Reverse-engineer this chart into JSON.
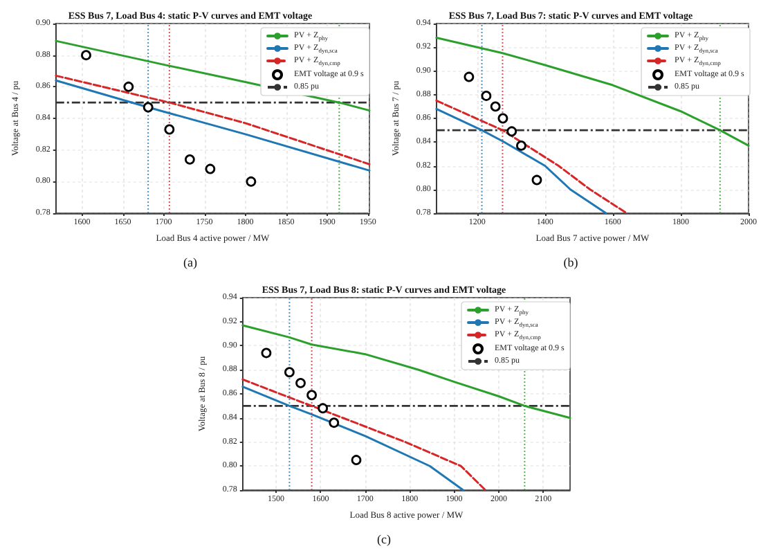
{
  "chart_data": [
    {
      "type": "line",
      "title": "ESS Bus 7, Load Bus 4: static P-V curves and EMT voltage",
      "xlabel": "Load Bus 4 active power / MW",
      "ylabel": "Voltage at Bus 4 / pu",
      "xlim": [
        1568,
        1952
      ],
      "xticks": [
        1600,
        1650,
        1700,
        1750,
        1800,
        1850,
        1900,
        1950
      ],
      "ylim": [
        0.78,
        0.9
      ],
      "yticks": [
        {
          "value": 0.78,
          "label": "0.78"
        },
        {
          "value": 0.8,
          "label": "0.80"
        },
        {
          "value": 0.82,
          "label": "0.82"
        },
        {
          "value": 0.84,
          "label": "0.84"
        },
        {
          "value": 0.86,
          "label": "0.86"
        },
        {
          "value": 0.88,
          "label": "0.88"
        },
        {
          "value": 0.9,
          "label": "0.90"
        }
      ],
      "grid": true,
      "legend": "top right",
      "annotations": [
        "(a)"
      ],
      "ref_lines": [
        {
          "axis": "y",
          "value": 0.85,
          "label": "0.85 pu",
          "color": "#333333",
          "line_style": "dashed"
        },
        {
          "axis": "x",
          "value": 1681,
          "label": null,
          "color": "#1f77b4",
          "line_style": "dotted"
        },
        {
          "axis": "x",
          "value": 1707,
          "label": null,
          "color": "#d62728",
          "line_style": "dotted"
        },
        {
          "axis": "x",
          "value": 1915,
          "label": null,
          "color": "#2ca02c",
          "line_style": "dotted"
        }
      ],
      "series": [
        {
          "name": "PV + Z$_{phy}$",
          "color": "#2ca02c",
          "line_style": "solid",
          "x": [
            1568,
            1700,
            1800,
            1915,
            1952
          ],
          "values": [
            0.889,
            0.874,
            0.863,
            0.85,
            0.845
          ]
        },
        {
          "name": "PV + Z$_{dyn,sca}$",
          "color": "#1f77b4",
          "line_style": "solid",
          "x": [
            1568,
            1681,
            1800,
            1952
          ],
          "values": [
            0.864,
            0.847,
            0.83,
            0.807
          ]
        },
        {
          "name": "PV + Z$_{dyn,cmp}$",
          "color": "#d62728",
          "line_style": "dashed",
          "x": [
            1568,
            1707,
            1800,
            1952
          ],
          "values": [
            0.867,
            0.85,
            0.837,
            0.811
          ]
        },
        {
          "name": "EMT voltage at 0.9 s",
          "type": "scatter",
          "marker": "circle",
          "color": "#000000",
          "x": [
            1605,
            1657,
            1681,
            1707,
            1732,
            1757,
            1807
          ],
          "values": [
            0.88,
            0.86,
            0.847,
            0.833,
            0.814,
            0.808,
            0.8
          ]
        }
      ]
    },
    {
      "type": "line",
      "title": "ESS Bus 7, Load Bus 7: static P-V curves and EMT voltage",
      "xlabel": "Load Bus 7 active power / MW",
      "ylabel": "Voltage at Bus 7 / pu",
      "xlim": [
        1080,
        2000
      ],
      "xticks": [
        1200,
        1400,
        1600,
        1800,
        2000
      ],
      "ylim": [
        0.78,
        0.94
      ],
      "yticks": [
        {
          "value": 0.78,
          "label": "0.78"
        },
        {
          "value": 0.8,
          "label": "0.80"
        },
        {
          "value": 0.82,
          "label": "0.82"
        },
        {
          "value": 0.84,
          "label": "0.84"
        },
        {
          "value": 0.86,
          "label": "0.86"
        },
        {
          "value": 0.88,
          "label": "0.88"
        },
        {
          "value": 0.9,
          "label": "0.90"
        },
        {
          "value": 0.92,
          "label": "0.92"
        },
        {
          "value": 0.94,
          "label": "0.94"
        }
      ],
      "grid": true,
      "legend": "top right",
      "annotations": [
        "(b)"
      ],
      "ref_lines": [
        {
          "axis": "y",
          "value": 0.85,
          "label": "0.85 pu",
          "color": "#333333",
          "line_style": "dashed"
        },
        {
          "axis": "x",
          "value": 1214,
          "label": null,
          "color": "#1f77b4",
          "line_style": "dotted"
        },
        {
          "axis": "x",
          "value": 1275,
          "label": null,
          "color": "#d62728",
          "line_style": "dotted"
        },
        {
          "axis": "x",
          "value": 1916,
          "label": null,
          "color": "#2ca02c",
          "line_style": "dotted"
        }
      ],
      "series": [
        {
          "name": "PV + Z$_{phy}$",
          "color": "#2ca02c",
          "line_style": "solid",
          "x": [
            1080,
            1275,
            1400,
            1600,
            1800,
            1916,
            2000
          ],
          "values": [
            0.928,
            0.915,
            0.905,
            0.888,
            0.866,
            0.85,
            0.837
          ]
        },
        {
          "name": "PV + Z$_{dyn,sca}$",
          "color": "#1f77b4",
          "line_style": "solid",
          "x": [
            1080,
            1214,
            1280,
            1400,
            1475,
            1580
          ],
          "values": [
            0.868,
            0.85,
            0.84,
            0.82,
            0.8,
            0.78
          ]
        },
        {
          "name": "PV + Z$_{dyn,cmp}$",
          "color": "#d62728",
          "line_style": "dashed",
          "x": [
            1080,
            1275,
            1330,
            1440,
            1533,
            1641
          ],
          "values": [
            0.875,
            0.85,
            0.84,
            0.82,
            0.8,
            0.78
          ]
        },
        {
          "name": "EMT voltage at 0.9 s",
          "type": "scatter",
          "marker": "circle",
          "color": "#000000",
          "x": [
            1176,
            1227,
            1254,
            1276,
            1302,
            1330,
            1376
          ],
          "values": [
            0.895,
            0.879,
            0.87,
            0.86,
            0.849,
            0.837,
            0.808
          ]
        }
      ]
    },
    {
      "type": "line",
      "title": "ESS Bus 7, Load Bus 8: static P-V curves and EMT voltage",
      "xlabel": "Load Bus 8 active power / MW",
      "ylabel": "Voltage at Bus 8 / pu",
      "xlim": [
        1425,
        2160
      ],
      "xticks": [
        1500,
        1600,
        1700,
        1800,
        1900,
        2000,
        2100
      ],
      "ylim": [
        0.78,
        0.94
      ],
      "yticks": [
        {
          "value": 0.78,
          "label": "0.78"
        },
        {
          "value": 0.8,
          "label": "0.80"
        },
        {
          "value": 0.82,
          "label": "0.82"
        },
        {
          "value": 0.84,
          "label": "0.84"
        },
        {
          "value": 0.86,
          "label": "0.86"
        },
        {
          "value": 0.88,
          "label": "0.88"
        },
        {
          "value": 0.9,
          "label": "0.90"
        },
        {
          "value": 0.92,
          "label": "0.92"
        },
        {
          "value": 0.94,
          "label": "0.94"
        }
      ],
      "grid": true,
      "legend": "top right",
      "annotations": [
        "(c)"
      ],
      "ref_lines": [
        {
          "axis": "y",
          "value": 0.85,
          "label": "0.85 pu",
          "color": "#333333",
          "line_style": "dashed"
        },
        {
          "axis": "x",
          "value": 1530,
          "label": null,
          "color": "#1f77b4",
          "line_style": "dotted"
        },
        {
          "axis": "x",
          "value": 1580,
          "label": null,
          "color": "#d62728",
          "line_style": "dotted"
        },
        {
          "axis": "x",
          "value": 2058,
          "label": null,
          "color": "#2ca02c",
          "line_style": "dotted"
        }
      ],
      "series": [
        {
          "name": "PV + Z$_{phy}$",
          "color": "#2ca02c",
          "line_style": "solid",
          "x": [
            1425,
            1530,
            1580,
            1700,
            1820,
            1900,
            2000,
            2058,
            2160
          ],
          "values": [
            0.917,
            0.907,
            0.901,
            0.893,
            0.88,
            0.87,
            0.858,
            0.85,
            0.84
          ]
        },
        {
          "name": "PV + Z$_{dyn,sca}$",
          "color": "#1f77b4",
          "line_style": "solid",
          "x": [
            1425,
            1530,
            1580,
            1700,
            1845,
            1920
          ],
          "values": [
            0.866,
            0.85,
            0.843,
            0.825,
            0.8,
            0.78
          ]
        },
        {
          "name": "PV + Z$_{dyn,cmp}$",
          "color": "#d62728",
          "line_style": "dashed",
          "x": [
            1425,
            1530,
            1580,
            1650,
            1790,
            1915,
            1970
          ],
          "values": [
            0.872,
            0.857,
            0.85,
            0.84,
            0.82,
            0.8,
            0.78
          ]
        },
        {
          "name": "EMT voltage at 0.9 s",
          "type": "scatter",
          "marker": "circle",
          "color": "#000000",
          "x": [
            1478,
            1530,
            1555,
            1580,
            1605,
            1630,
            1680
          ],
          "values": [
            0.894,
            0.878,
            0.869,
            0.859,
            0.848,
            0.836,
            0.805
          ]
        }
      ]
    }
  ]
}
